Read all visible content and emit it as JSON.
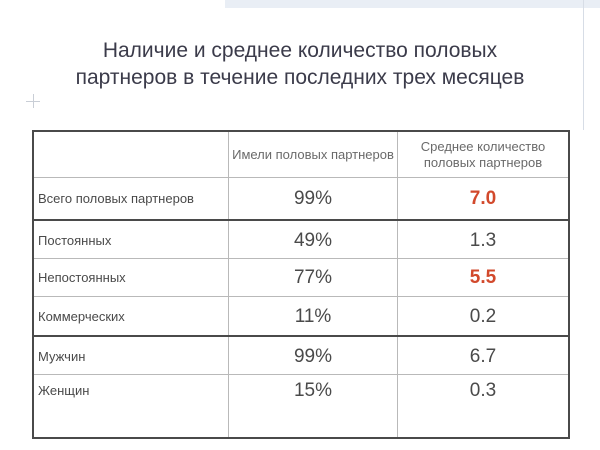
{
  "title": {
    "line1": "Наличие и среднее количество половых",
    "line2": "партнеров в течение последних трех месяцев"
  },
  "table": {
    "headers": {
      "had_partners": "Имели половых партнеров",
      "avg_count": "Среднее количество половых партнеров"
    },
    "rows": [
      {
        "label": "Всего половых партнеров",
        "had": "99%",
        "avg": "7.0",
        "highlight": true
      },
      {
        "label": "Постоянных",
        "had": "49%",
        "avg": "1.3",
        "highlight": false
      },
      {
        "label": "Непостоянных",
        "had": "77%",
        "avg": "5.5",
        "highlight": true
      },
      {
        "label": "Коммерческих",
        "had": "11%",
        "avg": "0.2",
        "highlight": false
      },
      {
        "label": "Мужчин",
        "had": "99%",
        "avg": "6.7",
        "highlight": false
      },
      {
        "label": "Женщин",
        "had": "15%",
        "avg": "0.3",
        "highlight": false
      }
    ]
  },
  "colors": {
    "highlight": "#d2492c",
    "text": "#4a4a4a"
  }
}
